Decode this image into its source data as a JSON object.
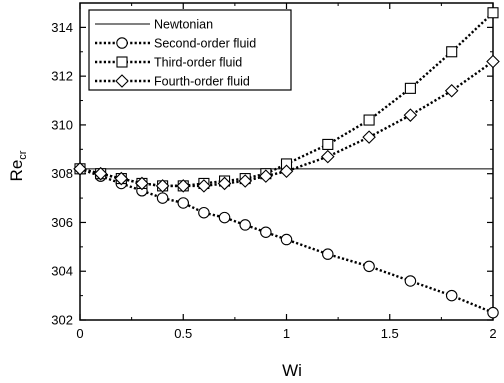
{
  "chart_data": {
    "type": "line",
    "xlabel": "Wi",
    "ylabel": "Re",
    "ylabel_subscript": "cr",
    "xlim": [
      0,
      2
    ],
    "ylim": [
      302,
      315
    ],
    "x_ticks": [
      {
        "value": 0,
        "label": "0"
      },
      {
        "value": 0.5,
        "label": "0.5"
      },
      {
        "value": 1,
        "label": "1"
      },
      {
        "value": 1.5,
        "label": "1.5"
      },
      {
        "value": 2,
        "label": "2"
      }
    ],
    "y_ticks": [
      {
        "value": 302,
        "label": "302"
      },
      {
        "value": 304,
        "label": "304"
      },
      {
        "value": 306,
        "label": "306"
      },
      {
        "value": 308,
        "label": "308"
      },
      {
        "value": 310,
        "label": "310"
      },
      {
        "value": 312,
        "label": "312"
      },
      {
        "value": 314,
        "label": "314"
      }
    ],
    "grid": false,
    "legend_position": "top-left",
    "series": [
      {
        "name": "Newtonian",
        "style": "solid",
        "marker": "none",
        "x": [
          0,
          2
        ],
        "y": [
          308.2,
          308.2
        ]
      },
      {
        "name": "Second-order fluid",
        "style": "dotted",
        "marker": "circle",
        "x": [
          0,
          0.1,
          0.2,
          0.3,
          0.4,
          0.5,
          0.6,
          0.7,
          0.8,
          0.9,
          1.0,
          1.2,
          1.4,
          1.6,
          1.8,
          2.0
        ],
        "y": [
          308.2,
          307.9,
          307.6,
          307.3,
          307.0,
          306.8,
          306.4,
          306.2,
          305.9,
          305.6,
          305.3,
          304.7,
          304.2,
          303.6,
          303.0,
          302.3
        ]
      },
      {
        "name": "Third-order fluid",
        "style": "dotted",
        "marker": "square",
        "x": [
          0,
          0.1,
          0.2,
          0.3,
          0.4,
          0.5,
          0.6,
          0.7,
          0.8,
          0.9,
          1.0,
          1.2,
          1.4,
          1.6,
          1.8,
          2.0
        ],
        "y": [
          308.2,
          308.0,
          307.8,
          307.6,
          307.5,
          307.5,
          307.6,
          307.7,
          307.8,
          308.0,
          308.4,
          309.2,
          310.2,
          311.5,
          313.0,
          314.6
        ]
      },
      {
        "name": "Fourth-order fluid",
        "style": "dotted",
        "marker": "diamond",
        "x": [
          0,
          0.1,
          0.2,
          0.3,
          0.4,
          0.5,
          0.6,
          0.7,
          0.8,
          0.9,
          1.0,
          1.2,
          1.4,
          1.6,
          1.8,
          2.0
        ],
        "y": [
          308.2,
          308.0,
          307.8,
          307.6,
          307.5,
          307.5,
          307.5,
          307.6,
          307.7,
          307.9,
          308.1,
          308.7,
          309.5,
          310.4,
          311.4,
          312.6
        ]
      }
    ]
  }
}
